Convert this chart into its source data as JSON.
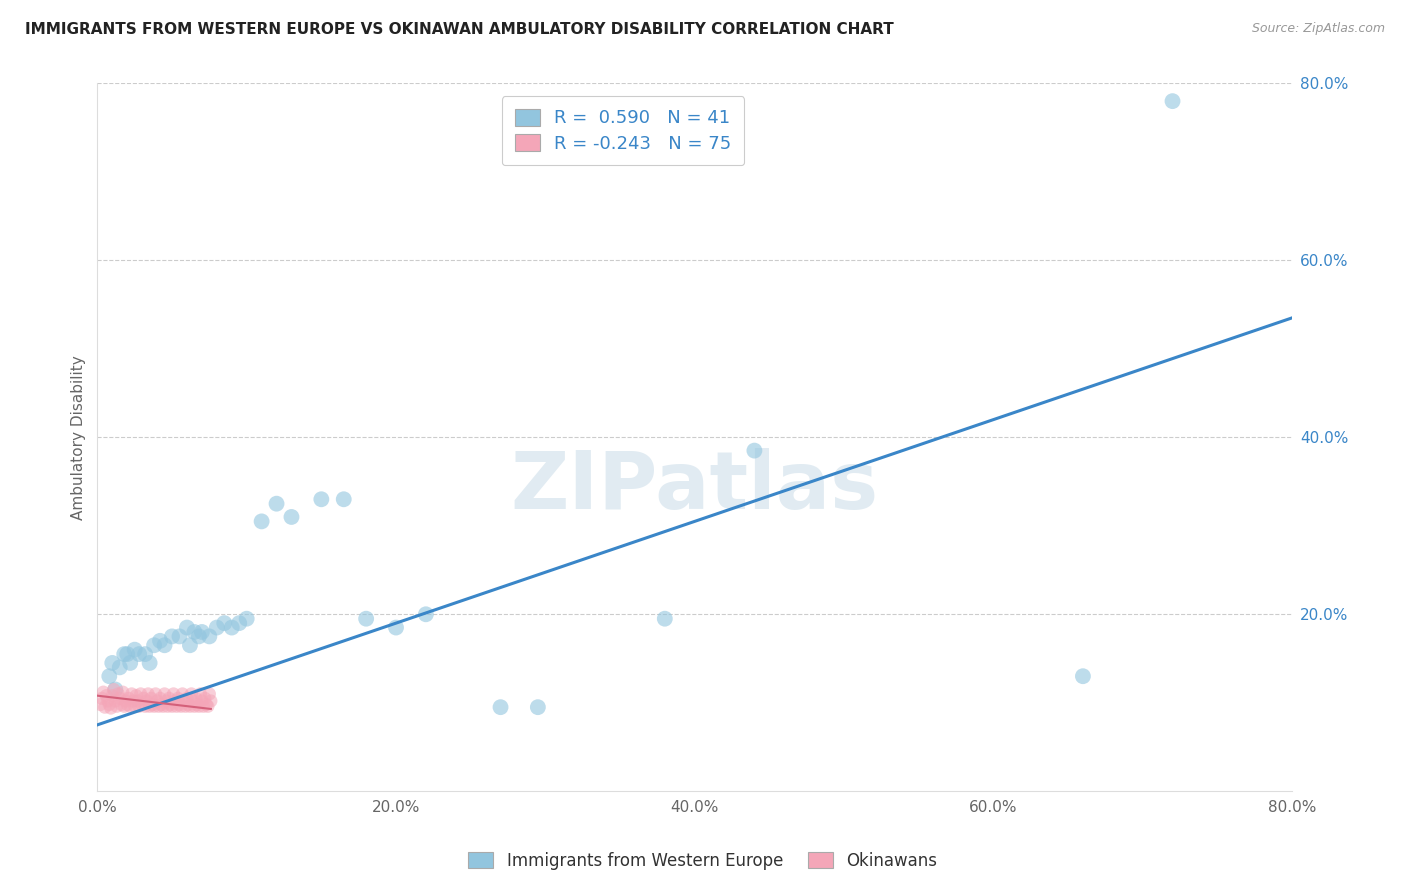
{
  "title": "IMMIGRANTS FROM WESTERN EUROPE VS OKINAWAN AMBULATORY DISABILITY CORRELATION CHART",
  "source": "Source: ZipAtlas.com",
  "ylabel": "Ambulatory Disability",
  "xlim": [
    0.0,
    0.8
  ],
  "ylim": [
    0.0,
    0.8
  ],
  "xtick_labels": [
    "0.0%",
    "20.0%",
    "40.0%",
    "60.0%",
    "80.0%"
  ],
  "xtick_vals": [
    0.0,
    0.2,
    0.4,
    0.6,
    0.8
  ],
  "ytick_vals": [
    0.2,
    0.4,
    0.6,
    0.8
  ],
  "ytick_labels": [
    "20.0%",
    "40.0%",
    "60.0%",
    "80.0%"
  ],
  "blue_color": "#92c5de",
  "pink_color": "#f4a6b8",
  "blue_line_color": "#3a86c8",
  "pink_line_color": "#d4607a",
  "grid_color": "#cccccc",
  "background_color": "#ffffff",
  "watermark": "ZIPatlas",
  "legend_r_blue": " 0.590",
  "legend_n_blue": "41",
  "legend_r_pink": "-0.243",
  "legend_n_pink": "75",
  "legend_label_blue": "Immigrants from Western Europe",
  "legend_label_pink": "Okinawans",
  "blue_scatter_x": [
    0.008,
    0.01,
    0.012,
    0.015,
    0.018,
    0.02,
    0.022,
    0.025,
    0.028,
    0.032,
    0.035,
    0.038,
    0.042,
    0.045,
    0.05,
    0.055,
    0.06,
    0.062,
    0.065,
    0.068,
    0.07,
    0.075,
    0.08,
    0.085,
    0.09,
    0.095,
    0.1,
    0.11,
    0.12,
    0.13,
    0.15,
    0.165,
    0.18,
    0.2,
    0.22,
    0.27,
    0.295,
    0.38,
    0.44,
    0.66,
    0.72
  ],
  "blue_scatter_y": [
    0.13,
    0.145,
    0.115,
    0.14,
    0.155,
    0.155,
    0.145,
    0.16,
    0.155,
    0.155,
    0.145,
    0.165,
    0.17,
    0.165,
    0.175,
    0.175,
    0.185,
    0.165,
    0.18,
    0.175,
    0.18,
    0.175,
    0.185,
    0.19,
    0.185,
    0.19,
    0.195,
    0.305,
    0.325,
    0.31,
    0.33,
    0.33,
    0.195,
    0.185,
    0.2,
    0.095,
    0.095,
    0.195,
    0.385,
    0.13,
    0.78
  ],
  "pink_scatter_x": [
    0.002,
    0.003,
    0.004,
    0.005,
    0.006,
    0.007,
    0.008,
    0.009,
    0.01,
    0.011,
    0.012,
    0.013,
    0.014,
    0.015,
    0.016,
    0.017,
    0.018,
    0.019,
    0.02,
    0.021,
    0.022,
    0.023,
    0.024,
    0.025,
    0.026,
    0.027,
    0.028,
    0.029,
    0.03,
    0.031,
    0.032,
    0.033,
    0.034,
    0.035,
    0.036,
    0.037,
    0.038,
    0.039,
    0.04,
    0.041,
    0.042,
    0.043,
    0.044,
    0.045,
    0.046,
    0.047,
    0.048,
    0.049,
    0.05,
    0.051,
    0.052,
    0.053,
    0.054,
    0.055,
    0.056,
    0.057,
    0.058,
    0.059,
    0.06,
    0.061,
    0.062,
    0.063,
    0.064,
    0.065,
    0.066,
    0.067,
    0.068,
    0.069,
    0.07,
    0.071,
    0.072,
    0.073,
    0.074,
    0.075,
    0.076
  ],
  "pink_scatter_y": [
    0.098,
    0.105,
    0.112,
    0.095,
    0.108,
    0.102,
    0.098,
    0.094,
    0.108,
    0.115,
    0.102,
    0.096,
    0.11,
    0.105,
    0.098,
    0.112,
    0.096,
    0.102,
    0.098,
    0.105,
    0.096,
    0.11,
    0.102,
    0.096,
    0.108,
    0.102,
    0.096,
    0.11,
    0.098,
    0.105,
    0.096,
    0.102,
    0.11,
    0.096,
    0.105,
    0.098,
    0.096,
    0.11,
    0.102,
    0.096,
    0.105,
    0.098,
    0.096,
    0.11,
    0.102,
    0.096,
    0.105,
    0.098,
    0.096,
    0.11,
    0.102,
    0.096,
    0.105,
    0.098,
    0.096,
    0.11,
    0.102,
    0.096,
    0.105,
    0.098,
    0.096,
    0.11,
    0.102,
    0.096,
    0.105,
    0.098,
    0.096,
    0.11,
    0.102,
    0.096,
    0.105,
    0.098,
    0.096,
    0.11,
    0.102
  ],
  "blue_line_x0": 0.0,
  "blue_line_x1": 0.8,
  "blue_line_y0": 0.075,
  "blue_line_y1": 0.535,
  "pink_line_x0": 0.0,
  "pink_line_x1": 0.076,
  "pink_line_y0": 0.108,
  "pink_line_y1": 0.093
}
